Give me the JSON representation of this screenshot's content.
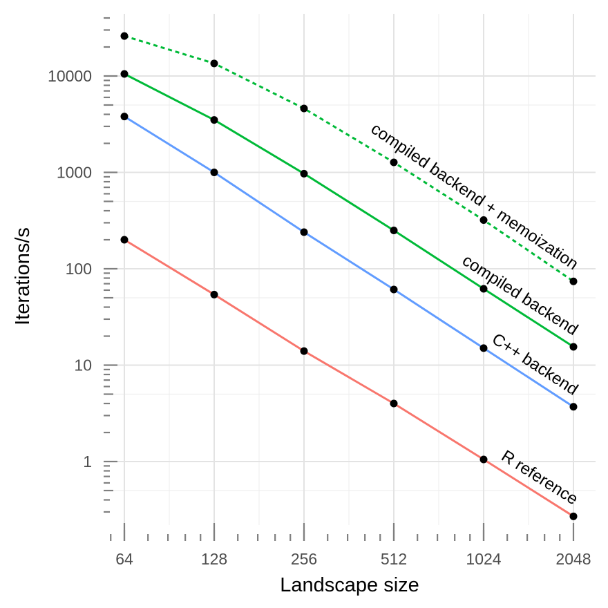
{
  "chart_data": {
    "type": "line",
    "title": "",
    "xlabel": "Landscape size",
    "ylabel": "Iterations/s",
    "x_scale": "log2",
    "y_scale": "log10",
    "x": [
      64,
      128,
      256,
      512,
      1024,
      2048
    ],
    "x_tick_labels": [
      "64",
      "128",
      "256",
      "512",
      "1024",
      "2048"
    ],
    "y_tick_values": [
      1,
      10,
      100,
      1000,
      10000
    ],
    "y_tick_labels": [
      "1",
      "10",
      "100",
      "1000",
      "10000"
    ],
    "xlim": [
      64,
      2048
    ],
    "ylim": [
      0.27,
      26000
    ],
    "grid": true,
    "legend": "none (series labelled directly on lines)",
    "series": [
      {
        "name": "R reference",
        "color": "#F8766D",
        "dash": "solid",
        "values": [
          200,
          54,
          14,
          4,
          1.05,
          0.27
        ]
      },
      {
        "name": "C++ backend",
        "color": "#619CFF",
        "dash": "solid",
        "values": [
          3800,
          1000,
          240,
          61,
          15,
          3.7
        ]
      },
      {
        "name": "compiled backend",
        "color": "#00BA38",
        "dash": "solid",
        "values": [
          10500,
          3500,
          970,
          250,
          62,
          15.5
        ]
      },
      {
        "name": "compiled backend + memoization",
        "color": "#00BA38",
        "dash": "dashed",
        "values": [
          26000,
          13500,
          4600,
          1270,
          320,
          74
        ]
      }
    ]
  }
}
